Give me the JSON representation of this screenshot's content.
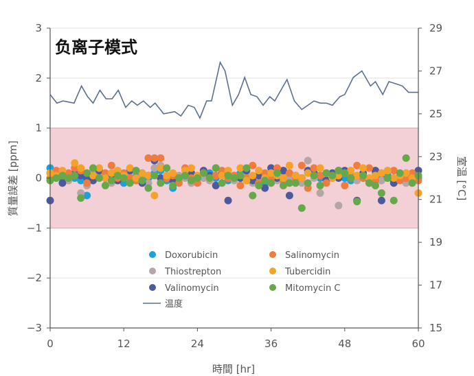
{
  "chart_data": {
    "type": "scatter",
    "title": "负离子模式",
    "xlabel": "時間 [hr]",
    "ylabel": "質量誤差 [ppm]",
    "y2label": "室温 [°C]",
    "xlim": [
      0,
      60
    ],
    "ylim": [
      -3,
      3
    ],
    "y2lim": [
      15,
      29
    ],
    "x_ticks": [
      "0",
      "12",
      "24",
      "36",
      "48",
      "60"
    ],
    "y_ticks": [
      "3",
      "2",
      "1",
      "0",
      "−1",
      "−2",
      "−3"
    ],
    "y2_ticks": [
      "29",
      "27",
      "25",
      "23",
      "21",
      "19",
      "17",
      "15"
    ],
    "tolerance_band": [
      -1,
      1
    ],
    "tolerance_band_color": "#f3d0d5",
    "x_step_hr": 1,
    "series": [
      {
        "name": "Doxorubicin",
        "color": "#1da1db",
        "values": [
          0.2,
          0.05,
          0.0,
          0.05,
          0.0,
          -0.05,
          -0.35,
          0.05,
          0.1,
          0.0,
          -0.05,
          0.0,
          -0.1,
          0.1,
          0.05,
          -0.05,
          0.0,
          0.1,
          0.15,
          -0.05,
          -0.2,
          0.0,
          0.05,
          -0.05,
          0.0,
          0.05,
          0.1,
          0.0,
          0.05,
          -0.05,
          0.0,
          0.1,
          -0.05,
          0.0,
          0.05,
          -0.1,
          0.0,
          0.05,
          0.0,
          -0.05,
          0.05,
          0.0,
          0.1,
          0.05,
          0.0,
          0.1,
          0.05,
          0.15,
          0.0,
          -0.05,
          0.05,
          0.0,
          -0.05,
          0.1,
          0.0,
          0.05,
          -0.05,
          0.05,
          0.0,
          0.05,
          0.0
        ]
      },
      {
        "name": "Thiostrepton",
        "color": "#b3a5a8",
        "values": [
          0.1,
          0.0,
          0.05,
          -0.05,
          0.1,
          -0.3,
          -0.15,
          0.15,
          0.05,
          0.0,
          -0.1,
          0.05,
          0.0,
          0.1,
          -0.05,
          0.05,
          -0.1,
          0.2,
          0.25,
          0.0,
          -0.05,
          0.05,
          0.0,
          -0.1,
          0.05,
          0.0,
          -0.05,
          0.05,
          0.1,
          0.0,
          -0.05,
          0.0,
          0.05,
          -0.1,
          0.0,
          0.05,
          0.0,
          -0.05,
          0.1,
          0.0,
          0.05,
          -0.1,
          0.35,
          0.0,
          -0.3,
          0.05,
          0.0,
          -0.55,
          0.1,
          0.0,
          -0.05,
          0.05,
          0.0,
          0.1,
          -0.05,
          0.15,
          0.0,
          0.05,
          -0.1,
          0.0,
          0.05
        ]
      },
      {
        "name": "Valinomycin",
        "color": "#4b5a9c",
        "values": [
          -0.45,
          0.05,
          -0.1,
          0.0,
          0.1,
          0.05,
          0.0,
          -0.05,
          0.15,
          0.0,
          0.05,
          -0.05,
          0.0,
          0.15,
          0.0,
          -0.1,
          0.05,
          0.35,
          0.0,
          0.05,
          -0.05,
          0.0,
          0.05,
          0.1,
          0.0,
          0.15,
          0.05,
          -0.15,
          0.1,
          -0.45,
          0.05,
          0.0,
          0.15,
          -0.05,
          0.05,
          -0.2,
          0.2,
          0.0,
          0.15,
          -0.35,
          0.05,
          0.0,
          0.15,
          0.1,
          0.05,
          -0.05,
          0.1,
          0.0,
          0.15,
          0.0,
          -0.45,
          0.1,
          -0.1,
          0.15,
          -0.45,
          0.0,
          -0.1,
          0.05,
          0.0,
          0.05,
          0.15
        ]
      },
      {
        "name": "Salinomycin",
        "color": "#ef7c3e",
        "values": [
          0.0,
          0.15,
          0.05,
          0.1,
          0.2,
          0.15,
          -0.1,
          0.05,
          0.0,
          0.1,
          0.25,
          0.0,
          0.1,
          0.0,
          -0.05,
          0.1,
          0.4,
          0.4,
          0.4,
          0.0,
          0.05,
          -0.1,
          0.2,
          0.0,
          -0.1,
          0.1,
          0.0,
          0.05,
          0.15,
          0.0,
          0.05,
          -0.15,
          0.0,
          0.25,
          -0.1,
          0.1,
          0.0,
          0.2,
          -0.05,
          0.1,
          0.0,
          0.25,
          -0.2,
          0.2,
          0.05,
          -0.1,
          0.0,
          0.15,
          -0.15,
          0.05,
          0.25,
          0.0,
          0.2,
          -0.05,
          0.1,
          0.0,
          0.15,
          -0.05,
          0.0,
          0.1,
          -0.05
        ]
      },
      {
        "name": "Tubercidin",
        "color": "#f4a22a",
        "values": [
          0.1,
          0.05,
          0.15,
          0.0,
          0.3,
          0.2,
          0.1,
          0.05,
          0.2,
          0.0,
          0.1,
          0.15,
          0.05,
          0.2,
          0.0,
          0.1,
          0.05,
          -0.35,
          0.2,
          0.05,
          0.1,
          0.0,
          0.15,
          0.2,
          0.05,
          0.1,
          0.0,
          0.2,
          0.05,
          0.15,
          0.0,
          0.2,
          -0.05,
          0.05,
          0.15,
          0.0,
          0.1,
          0.05,
          0.0,
          0.25,
          0.05,
          0.0,
          0.1,
          0.05,
          0.2,
          0.1,
          0.0,
          0.05,
          0.1,
          0.15,
          0.05,
          0.2,
          0.0,
          0.05,
          0.1,
          0.15,
          0.0,
          0.05,
          0.1,
          0.0,
          -0.3
        ]
      },
      {
        "name": "Mitomycin C",
        "color": "#67a84a",
        "values": [
          -0.05,
          0.0,
          0.05,
          0.0,
          0.05,
          -0.4,
          0.1,
          0.2,
          0.0,
          -0.15,
          -0.05,
          0.05,
          0.0,
          -0.1,
          0.15,
          -0.05,
          -0.2,
          0.05,
          -0.1,
          0.2,
          -0.15,
          0.0,
          0.05,
          -0.05,
          0.0,
          0.1,
          0.0,
          0.2,
          -0.1,
          0.05,
          0.0,
          0.05,
          0.2,
          -0.35,
          -0.15,
          -0.05,
          -0.1,
          0.1,
          -0.15,
          -0.1,
          -0.1,
          -0.6,
          -0.1,
          0.05,
          -0.15,
          0.1,
          0.05,
          0.15,
          0.1,
          0.0,
          -0.47,
          0.05,
          -0.1,
          -0.15,
          -0.3,
          0.0,
          -0.45,
          0.1,
          0.4,
          -0.1,
          0.05
        ]
      }
    ],
    "temperature": {
      "name": "温度",
      "color": "#5b6f89",
      "axis": "right",
      "x": [
        0,
        1.1,
        2.1,
        3.9,
        5.1,
        6.1,
        7.0,
        8.1,
        9.1,
        10.1,
        11.1,
        12.3,
        13.3,
        14.2,
        15.2,
        16.3,
        17.1,
        18.5,
        20.3,
        21.3,
        22.5,
        23.5,
        24.4,
        25.5,
        26.3,
        27.7,
        28.5,
        29.7,
        30.7,
        31.7,
        32.7,
        33.7,
        34.7,
        35.8,
        36.6,
        38.6,
        39.8,
        41.0,
        42.0,
        43.0,
        44.0,
        45.0,
        46.0,
        47.2,
        48.0,
        49.4,
        50.8,
        52.2,
        53.0,
        54.2,
        55.2,
        56.4,
        57.4,
        58.4,
        59.2,
        60
      ],
      "y": [
        25.9,
        25.5,
        25.6,
        25.5,
        26.3,
        25.8,
        25.5,
        26.1,
        25.7,
        25.7,
        26.1,
        25.3,
        25.6,
        25.4,
        25.6,
        25.3,
        25.5,
        25.0,
        25.1,
        24.9,
        25.4,
        25.3,
        24.8,
        25.6,
        25.6,
        27.4,
        27.0,
        25.4,
        25.9,
        26.7,
        25.9,
        25.8,
        25.4,
        25.8,
        25.6,
        26.6,
        25.6,
        25.2,
        25.4,
        25.6,
        25.5,
        25.5,
        25.4,
        25.8,
        25.9,
        26.7,
        27.0,
        26.3,
        26.5,
        25.9,
        26.5,
        26.4,
        26.3,
        26.0,
        26.0,
        26.0
      ]
    }
  }
}
